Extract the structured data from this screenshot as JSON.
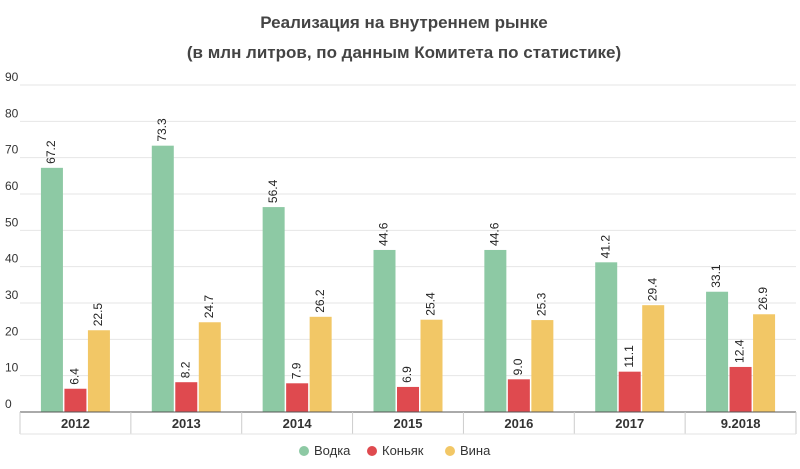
{
  "chart_data": {
    "type": "bar",
    "title_lines": [
      "Реализация на внутреннем рынке",
      "(в млн литров, по данным Комитета по статистике)"
    ],
    "categories": [
      "2012",
      "2013",
      "2014",
      "2015",
      "2016",
      "2017",
      "9.2018"
    ],
    "series": [
      {
        "name": "Водка",
        "color": "#8dc9a4",
        "values": [
          67.2,
          73.3,
          56.4,
          44.6,
          44.6,
          41.2,
          33.1
        ]
      },
      {
        "name": "Коньяк",
        "color": "#df4a4f",
        "values": [
          6.4,
          8.2,
          7.9,
          6.9,
          9.0,
          11.1,
          12.4
        ]
      },
      {
        "name": "Вина",
        "color": "#f2c766",
        "values": [
          22.5,
          24.7,
          26.2,
          25.4,
          25.3,
          29.4,
          26.9
        ]
      }
    ],
    "ylim": [
      0,
      90
    ],
    "yticks": [
      0,
      10,
      20,
      30,
      40,
      50,
      60,
      70,
      80,
      90
    ],
    "grid": true,
    "legend": "bottom-center"
  }
}
